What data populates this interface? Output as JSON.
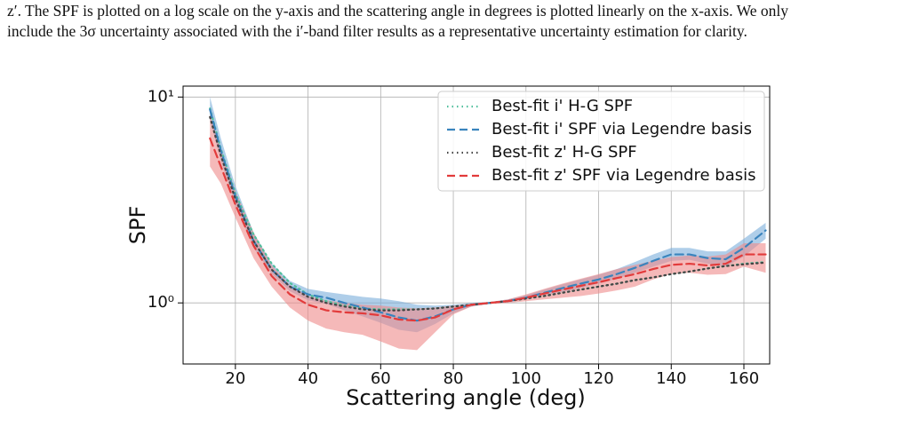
{
  "text": [
    "z′. The SPF is plotted on a log scale on the y-axis and the scattering angle in degrees is plotted linearly on the x-axis. We only",
    "include the 3σ uncertainty associated with the i′-band filter results as a representative uncertainty estimation for clarity."
  ],
  "chart_data": {
    "type": "line",
    "xlabel": "Scattering angle (deg)",
    "ylabel": "SPF",
    "yscale": "log",
    "grid": true,
    "legend": "upper right",
    "xlim": [
      5.6,
      167.1
    ],
    "xticks": [
      20,
      40,
      60,
      80,
      100,
      120,
      140,
      160
    ],
    "ylim": [
      0.505,
      11.3
    ],
    "yticks": [
      {
        "value": 1,
        "label": "10⁰"
      },
      {
        "value": 10,
        "label": "10¹"
      }
    ],
    "x": [
      13,
      16,
      20,
      25,
      30,
      35,
      40,
      45,
      50,
      55,
      60,
      65,
      70,
      75,
      80,
      85,
      90,
      95,
      100,
      105,
      110,
      115,
      120,
      125,
      130,
      135,
      140,
      145,
      150,
      155,
      160,
      166
    ],
    "bands": [
      {
        "color": "#7aaedb",
        "opacity": 0.6,
        "upper": [
          10,
          6.3,
          3.7,
          2.2,
          1.55,
          1.28,
          1.17,
          1.13,
          1.1,
          1.07,
          1.05,
          1.02,
          0.98,
          0.97,
          0.98,
          1.0,
          1.01,
          1.04,
          1.09,
          1.16,
          1.23,
          1.3,
          1.37,
          1.46,
          1.58,
          1.72,
          1.85,
          1.85,
          1.78,
          1.78,
          2.05,
          2.45
        ],
        "lower": [
          7.8,
          4.9,
          3.0,
          1.85,
          1.38,
          1.14,
          1.03,
          0.99,
          0.92,
          0.86,
          0.8,
          0.74,
          0.72,
          0.79,
          0.89,
          0.96,
          0.99,
          1.01,
          1.04,
          1.09,
          1.13,
          1.18,
          1.24,
          1.31,
          1.4,
          1.5,
          1.6,
          1.62,
          1.55,
          1.5,
          1.68,
          2.05
        ]
      },
      {
        "color": "#ef8a8a",
        "opacity": 0.6,
        "upper": [
          8.2,
          5.6,
          3.5,
          2.2,
          1.52,
          1.22,
          1.08,
          1.03,
          1.0,
          0.98,
          0.97,
          0.95,
          0.94,
          0.95,
          0.97,
          0.99,
          1.01,
          1.04,
          1.1,
          1.17,
          1.24,
          1.31,
          1.38,
          1.46,
          1.53,
          1.6,
          1.67,
          1.7,
          1.68,
          1.72,
          1.95,
          1.95
        ],
        "lower": [
          4.6,
          3.8,
          2.6,
          1.65,
          1.2,
          0.95,
          0.82,
          0.75,
          0.72,
          0.7,
          0.65,
          0.6,
          0.59,
          0.72,
          0.88,
          0.96,
          0.99,
          1.0,
          1.02,
          1.04,
          1.06,
          1.08,
          1.11,
          1.15,
          1.2,
          1.3,
          1.38,
          1.4,
          1.37,
          1.38,
          1.5,
          1.4
        ]
      }
    ],
    "series": [
      {
        "name": "Best-fit i' H-G SPF",
        "color": "#4fbf9c",
        "linestyle": "dotted",
        "values": [
          8.8,
          5.6,
          3.4,
          2.15,
          1.55,
          1.25,
          1.1,
          1.02,
          0.97,
          0.94,
          0.93,
          0.93,
          0.93,
          0.94,
          0.96,
          0.98,
          1.0,
          1.02,
          1.05,
          1.08,
          1.12,
          1.16,
          1.2,
          1.24,
          1.29,
          1.33,
          1.38,
          1.42,
          1.47,
          1.51,
          1.55,
          1.58
        ]
      },
      {
        "name": "Best-fit i' SPF via Legendre basis",
        "color": "#3a84bd",
        "linestyle": "dashed",
        "values": [
          8.7,
          5.5,
          3.3,
          2.0,
          1.45,
          1.2,
          1.1,
          1.06,
          1.0,
          0.95,
          0.9,
          0.85,
          0.82,
          0.86,
          0.93,
          0.98,
          1.0,
          1.02,
          1.06,
          1.12,
          1.18,
          1.24,
          1.3,
          1.38,
          1.48,
          1.6,
          1.72,
          1.72,
          1.65,
          1.63,
          1.85,
          2.25
        ]
      },
      {
        "name": "Best-fit z' H-G SPF",
        "color": "#444444",
        "linestyle": "dotted",
        "values": [
          8.0,
          5.2,
          3.2,
          2.0,
          1.45,
          1.2,
          1.07,
          1.0,
          0.96,
          0.93,
          0.92,
          0.92,
          0.93,
          0.94,
          0.96,
          0.98,
          1.0,
          1.02,
          1.05,
          1.08,
          1.12,
          1.16,
          1.2,
          1.24,
          1.29,
          1.33,
          1.38,
          1.42,
          1.47,
          1.51,
          1.54,
          1.57
        ]
      },
      {
        "name": "Best-fit z' SPF via Legendre basis",
        "color": "#e23b3b",
        "linestyle": "dashed",
        "values": [
          6.3,
          4.6,
          3.0,
          1.9,
          1.35,
          1.1,
          0.98,
          0.92,
          0.9,
          0.89,
          0.87,
          0.83,
          0.82,
          0.85,
          0.93,
          0.98,
          1.0,
          1.02,
          1.06,
          1.11,
          1.16,
          1.21,
          1.26,
          1.32,
          1.38,
          1.46,
          1.53,
          1.55,
          1.52,
          1.55,
          1.72,
          1.72
        ]
      }
    ]
  }
}
